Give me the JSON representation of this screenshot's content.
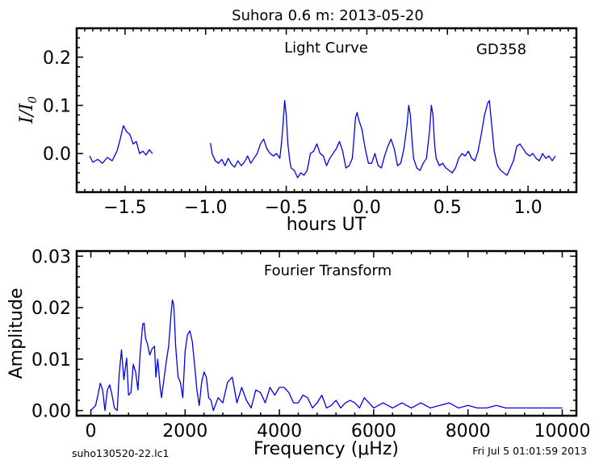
{
  "title": "Suhora 0.6 m:  2013-05-20",
  "footer": {
    "filename": "suho130520-22.lc1",
    "timestamp": "Fri Jul  5 01:01:59 2013"
  },
  "chart_data": [
    {
      "type": "line",
      "annotation": "Light Curve",
      "object": "GD358",
      "xlabel": "hours UT",
      "ylabel": "I/I0",
      "xlim": [
        -1.8,
        1.3
      ],
      "ylim": [
        -0.08,
        0.26
      ],
      "xticks": [
        -1.5,
        -1.0,
        -0.5,
        0.0,
        0.5,
        1.0
      ],
      "xtick_labels": [
        "−1.5",
        "−1.0",
        "−0.5",
        "0.0",
        "0.5",
        "1.0"
      ],
      "yticks": [
        0.0,
        0.1,
        0.2
      ],
      "ytick_labels": [
        "0.0",
        "0.1",
        "0.2"
      ],
      "color": "#0000ee",
      "series": [
        {
          "segments": [
            {
              "x": [
                -1.72,
                -1.7,
                -1.67,
                -1.64,
                -1.61,
                -1.58,
                -1.55,
                -1.53,
                -1.51,
                -1.49,
                -1.47,
                -1.45,
                -1.43,
                -1.41,
                -1.39,
                -1.37,
                -1.35,
                -1.33
              ],
              "y": [
                -0.005,
                -0.018,
                -0.012,
                -0.02,
                -0.008,
                -0.015,
                0.005,
                0.03,
                0.058,
                0.045,
                0.04,
                0.02,
                0.025,
                0.0,
                0.005,
                -0.003,
                0.008,
                0.0
              ]
            },
            {
              "x": [
                -0.97,
                -0.96,
                -0.94,
                -0.92,
                -0.9,
                -0.88,
                -0.86,
                -0.84,
                -0.82,
                -0.8,
                -0.78,
                -0.76,
                -0.74,
                -0.72,
                -0.7,
                -0.68,
                -0.66,
                -0.64,
                -0.62,
                -0.6,
                -0.58,
                -0.56,
                -0.54,
                -0.53,
                -0.52,
                -0.51,
                -0.5,
                -0.49,
                -0.48,
                -0.47,
                -0.45,
                -0.43,
                -0.41,
                -0.39,
                -0.37,
                -0.35,
                -0.33,
                -0.31,
                -0.29,
                -0.27,
                -0.25,
                -0.23,
                -0.21,
                -0.19,
                -0.17,
                -0.15,
                -0.13,
                -0.11,
                -0.09,
                -0.08,
                -0.07,
                -0.06,
                -0.05,
                -0.04,
                -0.03,
                -0.01,
                0.01,
                0.03,
                0.05,
                0.07,
                0.09,
                0.11,
                0.13,
                0.15,
                0.17,
                0.19,
                0.21,
                0.23,
                0.25,
                0.26,
                0.27,
                0.28,
                0.29,
                0.31,
                0.33,
                0.35,
                0.37,
                0.39,
                0.4,
                0.41,
                0.42,
                0.43,
                0.45,
                0.47,
                0.49,
                0.51,
                0.53,
                0.55,
                0.57,
                0.59,
                0.61,
                0.63,
                0.65,
                0.67,
                0.69,
                0.71,
                0.73,
                0.75,
                0.76,
                0.77,
                0.78,
                0.79,
                0.81,
                0.83,
                0.85,
                0.87,
                0.89,
                0.91,
                0.93,
                0.95,
                0.97,
                0.99,
                1.01,
                1.03,
                1.05,
                1.07,
                1.09,
                1.11,
                1.13,
                1.15,
                1.17
              ],
              "y": [
                0.022,
                0.0,
                -0.015,
                -0.02,
                -0.012,
                -0.025,
                -0.01,
                -0.022,
                -0.028,
                -0.015,
                -0.025,
                -0.018,
                -0.005,
                -0.02,
                -0.01,
                0.0,
                0.02,
                0.03,
                0.01,
                0.0,
                -0.005,
                0.0,
                -0.01,
                0.02,
                0.06,
                0.11,
                0.08,
                0.02,
                -0.01,
                -0.03,
                -0.035,
                -0.05,
                -0.04,
                -0.045,
                -0.035,
                0.0,
                0.005,
                0.02,
                0.0,
                -0.005,
                -0.025,
                -0.01,
                0.0,
                0.01,
                0.025,
                0.005,
                -0.03,
                -0.025,
                -0.01,
                0.03,
                0.075,
                0.085,
                0.07,
                0.06,
                0.05,
                0.01,
                -0.02,
                -0.02,
                0.0,
                -0.025,
                -0.03,
                -0.005,
                0.015,
                0.03,
                0.01,
                -0.025,
                -0.02,
                0.01,
                0.06,
                0.1,
                0.08,
                0.03,
                -0.01,
                -0.03,
                -0.035,
                -0.02,
                -0.01,
                0.05,
                0.1,
                0.08,
                0.02,
                -0.01,
                -0.025,
                -0.02,
                -0.03,
                -0.035,
                -0.04,
                -0.03,
                -0.01,
                0.0,
                -0.005,
                0.005,
                -0.01,
                -0.015,
                0.005,
                0.04,
                0.08,
                0.105,
                0.11,
                0.075,
                0.04,
                0.005,
                -0.025,
                -0.035,
                -0.04,
                -0.045,
                -0.03,
                -0.015,
                0.015,
                0.02,
                0.01,
                0.0,
                -0.005,
                0.0,
                -0.01,
                -0.015,
                0.0,
                -0.01,
                -0.005,
                -0.015,
                -0.005
              ]
            }
          ]
        }
      ]
    },
    {
      "type": "line",
      "annotation": "Fourier Transform",
      "xlabel": "Frequency (μHz)",
      "ylabel": "Amplitude",
      "xlim": [
        -300,
        10300
      ],
      "ylim": [
        -0.001,
        0.031
      ],
      "xticks": [
        0,
        2000,
        4000,
        6000,
        8000,
        10000
      ],
      "xtick_labels": [
        "0",
        "2000",
        "4000",
        "6000",
        "8000",
        "10000"
      ],
      "yticks": [
        0.0,
        0.01,
        0.02,
        0.03
      ],
      "ytick_labels": [
        "0.00",
        "0.01",
        "0.02",
        "0.03"
      ],
      "color": "#0000ee",
      "series": [
        {
          "x": [
            0,
            100,
            150,
            200,
            250,
            300,
            350,
            400,
            450,
            500,
            560,
            600,
            650,
            700,
            760,
            800,
            850,
            900,
            950,
            1000,
            1050,
            1100,
            1130,
            1160,
            1200,
            1250,
            1300,
            1350,
            1380,
            1420,
            1470,
            1500,
            1550,
            1600,
            1650,
            1700,
            1730,
            1760,
            1800,
            1850,
            1900,
            1950,
            2000,
            2050,
            2100,
            2150,
            2200,
            2250,
            2300,
            2350,
            2400,
            2450,
            2500,
            2550,
            2600,
            2700,
            2800,
            2900,
            3000,
            3100,
            3200,
            3300,
            3400,
            3500,
            3600,
            3700,
            3800,
            3900,
            4000,
            4100,
            4200,
            4300,
            4400,
            4500,
            4600,
            4700,
            4800,
            4900,
            5000,
            5100,
            5200,
            5300,
            5400,
            5500,
            5600,
            5700,
            5800,
            5900,
            6000,
            6200,
            6400,
            6600,
            6800,
            7000,
            7200,
            7400,
            7600,
            7800,
            8000,
            8200,
            8400,
            8600,
            8800,
            9000,
            9200,
            9400,
            9600,
            9800,
            10000
          ],
          "y": [
            0.0,
            0.001,
            0.003,
            0.0053,
            0.004,
            0.0,
            0.004,
            0.005,
            0.003,
            0.0005,
            0.0,
            0.007,
            0.0118,
            0.006,
            0.0102,
            0.003,
            0.0035,
            0.009,
            0.0075,
            0.004,
            0.0115,
            0.0168,
            0.017,
            0.014,
            0.013,
            0.0108,
            0.012,
            0.0125,
            0.0065,
            0.01,
            0.0045,
            0.0025,
            0.006,
            0.0095,
            0.0125,
            0.0185,
            0.0215,
            0.0205,
            0.0125,
            0.0065,
            0.0055,
            0.0025,
            0.0115,
            0.0147,
            0.0155,
            0.0135,
            0.009,
            0.004,
            0.001,
            0.0055,
            0.0075,
            0.0065,
            0.0025,
            0.002,
            0.0,
            0.0025,
            0.0015,
            0.0055,
            0.0065,
            0.0015,
            0.0045,
            0.002,
            0.0005,
            0.004,
            0.0035,
            0.0015,
            0.0045,
            0.003,
            0.0045,
            0.0045,
            0.0035,
            0.0015,
            0.0015,
            0.003,
            0.0025,
            0.0005,
            0.0015,
            0.003,
            0.0005,
            0.001,
            0.002,
            0.0005,
            0.0015,
            0.002,
            0.0015,
            0.0005,
            0.0025,
            0.0015,
            0.0005,
            0.0015,
            0.0005,
            0.0015,
            0.0005,
            0.0015,
            0.0005,
            0.001,
            0.0015,
            0.0005,
            0.001,
            0.0005,
            0.0005,
            0.001,
            0.0005,
            0.0005,
            0.0005,
            0.0005,
            0.0005,
            0.0005,
            0.0005
          ]
        }
      ]
    }
  ]
}
